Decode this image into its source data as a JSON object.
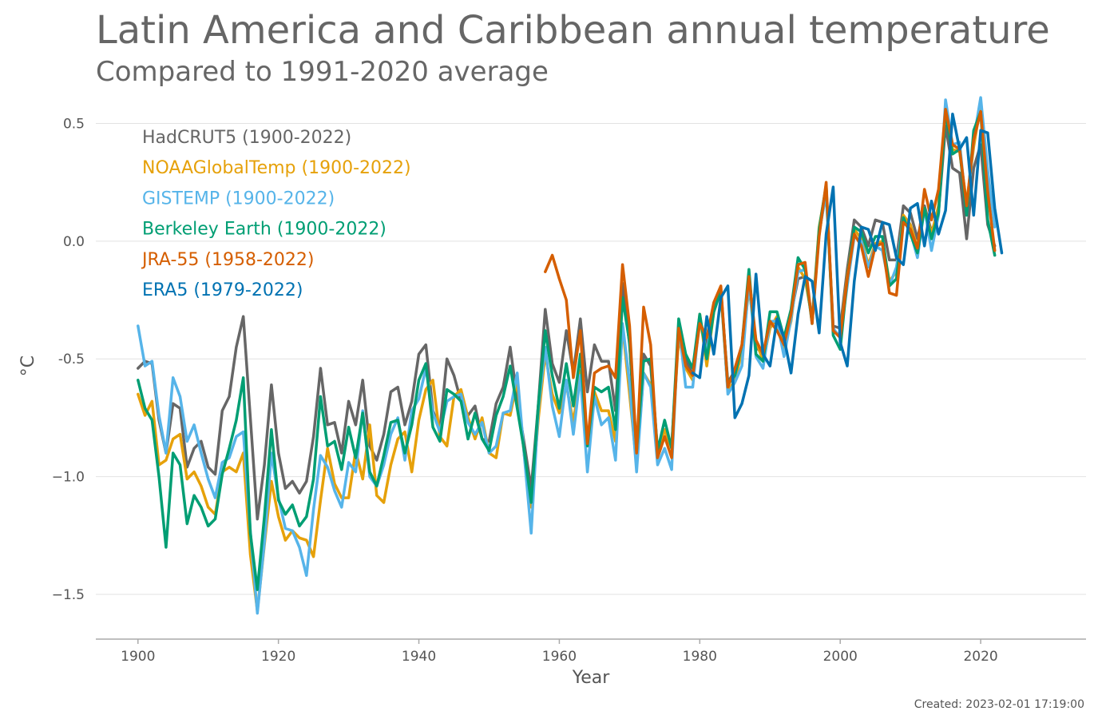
{
  "header": {
    "title": "Latin America and Caribbean annual temperature",
    "subtitle": "Compared to 1991-2020 average"
  },
  "footer": {
    "created": "Created: 2023-02-01 17:19:00"
  },
  "chart_data": {
    "type": "line",
    "title": "Latin America and Caribbean annual temperature",
    "subtitle": "Compared to 1991-2020 average",
    "xlabel": "Year",
    "ylabel": "°C",
    "xlim": [
      1894,
      2035
    ],
    "ylim": [
      -1.69,
      0.6
    ],
    "x_ticks": [
      1900,
      1920,
      1940,
      1960,
      1980,
      2000,
      2020
    ],
    "x_tick_labels": [
      "1900",
      "1920",
      "1940",
      "1960",
      "1980",
      "2000",
      "2020"
    ],
    "y_ticks": [
      0.5,
      0.0,
      -0.5,
      -1.0,
      -1.5
    ],
    "y_tick_labels": [
      "0.5",
      "0.0",
      "-0.5",
      "−1.0",
      "−1.5"
    ],
    "grid": "horizontal",
    "legend_position": "top-left",
    "series": [
      {
        "name": "HadCRUT5 (1900-2022)",
        "color": "#666666",
        "start_year": 1900,
        "values": [
          -0.54,
          -0.51,
          -0.52,
          -0.76,
          -0.9,
          -0.69,
          -0.71,
          -0.96,
          -0.88,
          -0.85,
          -0.96,
          -0.99,
          -0.72,
          -0.66,
          -0.45,
          -0.32,
          -0.75,
          -1.18,
          -0.95,
          -0.61,
          -0.9,
          -1.05,
          -1.02,
          -1.07,
          -1.02,
          -0.83,
          -0.54,
          -0.78,
          -0.77,
          -0.9,
          -0.68,
          -0.78,
          -0.59,
          -0.87,
          -0.93,
          -0.82,
          -0.64,
          -0.62,
          -0.78,
          -0.68,
          -0.48,
          -0.44,
          -0.72,
          -0.8,
          -0.5,
          -0.57,
          -0.68,
          -0.74,
          -0.7,
          -0.84,
          -0.85,
          -0.69,
          -0.62,
          -0.45,
          -0.67,
          -0.86,
          -1.05,
          -0.7,
          -0.29,
          -0.52,
          -0.6,
          -0.38,
          -0.56,
          -0.33,
          -0.64,
          -0.44,
          -0.51,
          -0.51,
          -0.72,
          -0.18,
          -0.44,
          -0.9,
          -0.48,
          -0.53,
          -0.89,
          -0.83,
          -0.87,
          -0.38,
          -0.5,
          -0.57,
          -0.33,
          -0.44,
          -0.28,
          -0.21,
          -0.6,
          -0.55,
          -0.46,
          -0.14,
          -0.45,
          -0.48,
          -0.34,
          -0.35,
          -0.46,
          -0.31,
          -0.16,
          -0.15,
          -0.33,
          0.03,
          0.22,
          -0.36,
          -0.37,
          -0.12,
          0.09,
          0.06,
          -0.02,
          0.09,
          0.08,
          -0.08,
          -0.08,
          0.15,
          0.12,
          0.01,
          0.15,
          0.04,
          0.12,
          0.49,
          0.31,
          0.29,
          0.01,
          0.31,
          0.41,
          0.07,
          -0.02
        ]
      },
      {
        "name": "NOAAGlobalTemp (1900-2022)",
        "color": "#e6a10a",
        "start_year": 1900,
        "values": [
          -0.65,
          -0.74,
          -0.68,
          -0.95,
          -0.93,
          -0.84,
          -0.82,
          -1.01,
          -0.98,
          -1.04,
          -1.13,
          -1.16,
          -0.98,
          -0.96,
          -0.98,
          -0.9,
          -1.33,
          -1.57,
          -1.29,
          -1.02,
          -1.17,
          -1.27,
          -1.23,
          -1.26,
          -1.27,
          -1.34,
          -1.1,
          -0.88,
          -1.03,
          -1.09,
          -1.09,
          -0.89,
          -1.01,
          -0.78,
          -1.08,
          -1.11,
          -0.95,
          -0.84,
          -0.81,
          -0.98,
          -0.76,
          -0.63,
          -0.59,
          -0.83,
          -0.87,
          -0.66,
          -0.63,
          -0.75,
          -0.84,
          -0.75,
          -0.9,
          -0.92,
          -0.73,
          -0.74,
          -0.59,
          -0.91,
          -1.13,
          -0.76,
          -0.48,
          -0.65,
          -0.73,
          -0.61,
          -0.77,
          -0.55,
          -0.86,
          -0.64,
          -0.72,
          -0.72,
          -0.85,
          -0.36,
          -0.65,
          -0.95,
          -0.56,
          -0.61,
          -0.91,
          -0.8,
          -0.88,
          -0.41,
          -0.54,
          -0.59,
          -0.31,
          -0.53,
          -0.3,
          -0.21,
          -0.64,
          -0.59,
          -0.47,
          -0.2,
          -0.42,
          -0.51,
          -0.37,
          -0.32,
          -0.46,
          -0.34,
          -0.11,
          -0.16,
          -0.33,
          0.06,
          0.23,
          -0.38,
          -0.4,
          -0.15,
          0.05,
          0.01,
          -0.1,
          -0.01,
          0.0,
          -0.17,
          -0.13,
          0.11,
          0.07,
          -0.03,
          0.14,
          0.03,
          0.15,
          0.56,
          0.39,
          0.38,
          0.16,
          0.4,
          0.58,
          0.27,
          0.1
        ]
      },
      {
        "name": "GISTEMP (1900-2022)",
        "color": "#56b4e9",
        "start_year": 1900,
        "values": [
          -0.36,
          -0.53,
          -0.51,
          -0.74,
          -0.9,
          -0.58,
          -0.66,
          -0.85,
          -0.78,
          -0.9,
          -1.01,
          -1.09,
          -0.94,
          -0.92,
          -0.83,
          -0.81,
          -1.23,
          -1.58,
          -1.28,
          -0.9,
          -1.09,
          -1.22,
          -1.23,
          -1.3,
          -1.42,
          -1.14,
          -0.91,
          -0.96,
          -1.06,
          -1.13,
          -0.94,
          -0.98,
          -0.72,
          -1.0,
          -1.04,
          -0.95,
          -0.82,
          -0.75,
          -0.93,
          -0.72,
          -0.67,
          -0.54,
          -0.73,
          -0.81,
          -0.68,
          -0.66,
          -0.65,
          -0.77,
          -0.82,
          -0.77,
          -0.9,
          -0.87,
          -0.73,
          -0.72,
          -0.56,
          -0.91,
          -1.24,
          -0.72,
          -0.45,
          -0.7,
          -0.83,
          -0.59,
          -0.82,
          -0.57,
          -0.98,
          -0.66,
          -0.78,
          -0.75,
          -0.93,
          -0.35,
          -0.6,
          -0.98,
          -0.56,
          -0.62,
          -0.95,
          -0.88,
          -0.97,
          -0.35,
          -0.62,
          -0.62,
          -0.32,
          -0.48,
          -0.27,
          -0.2,
          -0.65,
          -0.6,
          -0.53,
          -0.17,
          -0.49,
          -0.54,
          -0.34,
          -0.34,
          -0.49,
          -0.33,
          -0.13,
          -0.12,
          -0.34,
          0.04,
          0.2,
          -0.37,
          -0.41,
          -0.19,
          0.02,
          0.0,
          -0.11,
          -0.02,
          -0.04,
          -0.19,
          -0.11,
          0.09,
          0.04,
          -0.07,
          0.14,
          -0.04,
          0.11,
          0.6,
          0.41,
          0.42,
          0.12,
          0.43,
          0.61,
          0.3,
          0.06
        ]
      },
      {
        "name": "Berkeley Earth (1900-2022)",
        "color": "#009e73",
        "start_year": 1900,
        "values": [
          -0.59,
          -0.71,
          -0.76,
          -1.0,
          -1.3,
          -0.9,
          -0.95,
          -1.2,
          -1.08,
          -1.13,
          -1.21,
          -1.18,
          -0.99,
          -0.88,
          -0.76,
          -0.58,
          -1.24,
          -1.48,
          -1.17,
          -0.8,
          -1.1,
          -1.16,
          -1.12,
          -1.21,
          -1.17,
          -1.01,
          -0.66,
          -0.87,
          -0.85,
          -0.97,
          -0.79,
          -0.92,
          -0.73,
          -0.98,
          -1.04,
          -0.91,
          -0.77,
          -0.76,
          -0.9,
          -0.78,
          -0.59,
          -0.52,
          -0.79,
          -0.85,
          -0.63,
          -0.65,
          -0.68,
          -0.84,
          -0.73,
          -0.84,
          -0.89,
          -0.74,
          -0.66,
          -0.53,
          -0.71,
          -0.89,
          -1.11,
          -0.7,
          -0.38,
          -0.57,
          -0.71,
          -0.52,
          -0.7,
          -0.48,
          -0.87,
          -0.62,
          -0.64,
          -0.62,
          -0.8,
          -0.24,
          -0.43,
          -0.89,
          -0.51,
          -0.5,
          -0.89,
          -0.76,
          -0.88,
          -0.33,
          -0.48,
          -0.54,
          -0.31,
          -0.5,
          -0.3,
          -0.21,
          -0.61,
          -0.57,
          -0.44,
          -0.12,
          -0.48,
          -0.51,
          -0.3,
          -0.3,
          -0.41,
          -0.29,
          -0.07,
          -0.12,
          -0.35,
          0.05,
          0.24,
          -0.4,
          -0.46,
          -0.16,
          0.06,
          0.04,
          -0.05,
          0.02,
          0.02,
          -0.19,
          -0.16,
          0.1,
          0.03,
          -0.05,
          0.14,
          0.01,
          0.12,
          0.55,
          0.37,
          0.39,
          0.11,
          0.47,
          0.55,
          0.09,
          -0.06
        ]
      },
      {
        "name": "JRA-55 (1958-2022)",
        "color": "#d55e00",
        "start_year": 1958,
        "values": [
          -0.13,
          -0.06,
          -0.16,
          -0.25,
          -0.58,
          -0.38,
          -0.86,
          -0.56,
          -0.54,
          -0.53,
          -0.58,
          -0.1,
          -0.36,
          -0.9,
          -0.28,
          -0.44,
          -0.92,
          -0.83,
          -0.92,
          -0.37,
          -0.53,
          -0.57,
          -0.35,
          -0.41,
          -0.26,
          -0.19,
          -0.62,
          -0.54,
          -0.44,
          -0.15,
          -0.42,
          -0.48,
          -0.34,
          -0.38,
          -0.44,
          -0.31,
          -0.1,
          -0.09,
          -0.35,
          0.02,
          0.25,
          -0.38,
          -0.41,
          -0.16,
          0.03,
          -0.02,
          -0.15,
          -0.02,
          -0.01,
          -0.22,
          -0.23,
          0.08,
          0.05,
          -0.03,
          0.22,
          0.09,
          0.22,
          0.56,
          0.41,
          0.39,
          0.15,
          0.43,
          0.55,
          0.21,
          -0.04
        ]
      },
      {
        "name": "ERA5 (1979-2022)",
        "color": "#0072b2",
        "start_year": 1979,
        "values": [
          -0.56,
          -0.58,
          -0.32,
          -0.48,
          -0.24,
          -0.19,
          -0.75,
          -0.69,
          -0.57,
          -0.14,
          -0.48,
          -0.53,
          -0.33,
          -0.41,
          -0.56,
          -0.31,
          -0.15,
          -0.17,
          -0.39,
          0.03,
          0.23,
          -0.43,
          -0.53,
          -0.17,
          0.06,
          0.05,
          -0.04,
          0.08,
          0.07,
          -0.07,
          -0.1,
          0.14,
          0.16,
          -0.02,
          0.17,
          0.03,
          0.13,
          0.54,
          0.39,
          0.44,
          0.11,
          0.47,
          0.46,
          0.14,
          -0.05
        ]
      }
    ]
  }
}
